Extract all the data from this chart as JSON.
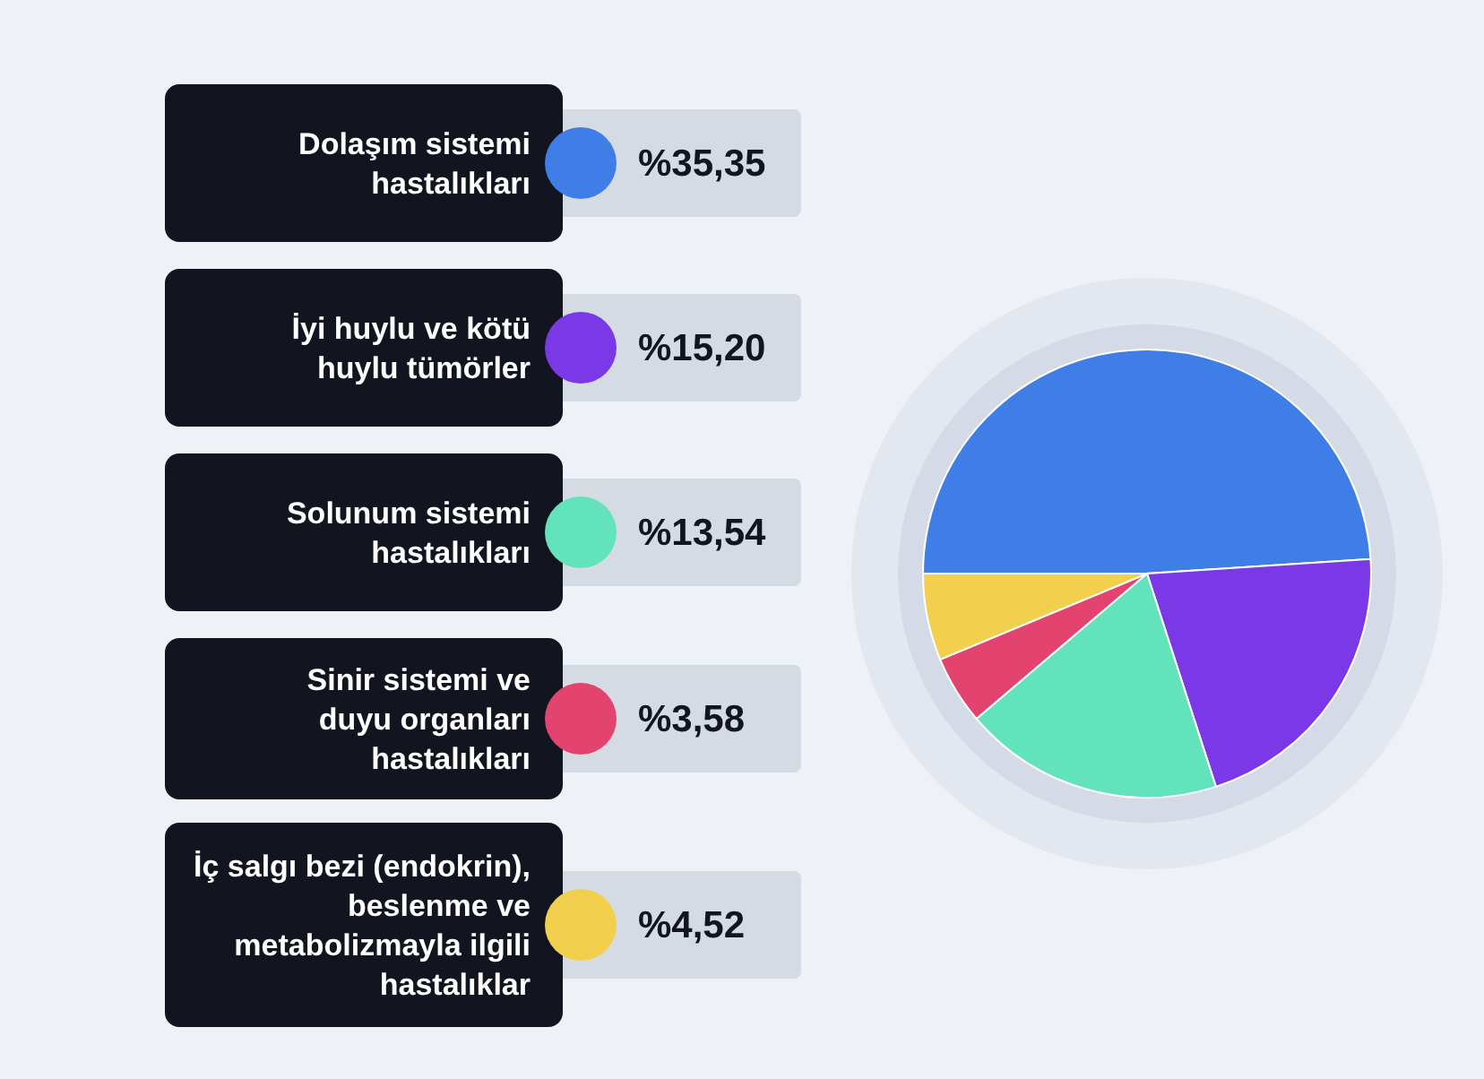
{
  "chart_data": {
    "type": "pie",
    "categories": [
      "Dolaşım sistemi hastalıkları",
      "İyi huylu ve kötü huylu tümörler",
      "Solunum sistemi hastalıkları",
      "Sinir sistemi ve duyu organları hastalıkları",
      "İç salgı bezi (endokrin), beslenme ve metabolizmayla ilgili hastalıklar"
    ],
    "values": [
      35.35,
      15.2,
      13.54,
      3.58,
      4.52
    ],
    "value_labels": [
      "%35,35",
      "%15,20",
      "%13,54",
      "%3,58",
      "%4,52"
    ],
    "colors": [
      "#3f7ee6",
      "#7a38e6",
      "#62e3bb",
      "#e2446f",
      "#f2cf4c"
    ],
    "legend": "left"
  }
}
